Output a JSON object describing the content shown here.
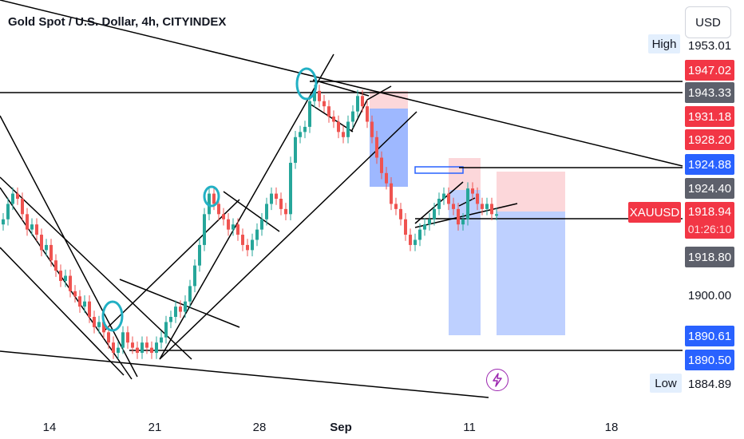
{
  "title": "Gold Spot / U.S. Dollar, 4h, CITYINDEX",
  "currency_button": "USD",
  "symbol": "XAUUSD",
  "countdown": "01:26:10",
  "high_label": "High",
  "low_label": "Low",
  "colors": {
    "up": "#26a69a",
    "down": "#ef5350",
    "label_red": "#f23645",
    "label_blue": "#2962ff",
    "label_gray": "#5d606b",
    "target_zone": "#2962ff",
    "stop_zone": "#f23645",
    "circle": "#22b0c4"
  },
  "icons": {
    "flash": "lightning-icon"
  },
  "price_labels": [
    {
      "value": "1953.01",
      "style": "plain",
      "y": 1953.01
    },
    {
      "value": "1947.02",
      "style": "red",
      "y": 1947.02
    },
    {
      "value": "1943.33",
      "style": "gray",
      "y": 1943.33
    },
    {
      "value": "1931.18",
      "style": "red",
      "y": 1931.18
    },
    {
      "value": "1928.20",
      "style": "red",
      "y": 1928.2
    },
    {
      "value": "1924.88",
      "style": "blue",
      "y": 1924.88
    },
    {
      "value": "1924.40",
      "style": "gray",
      "y": 1924.4
    },
    {
      "value": "1918.80",
      "style": "gray",
      "y": 1918.8
    },
    {
      "value": "1900.00",
      "style": "plain",
      "y": 1900.0
    },
    {
      "value": "1890.61",
      "style": "blue",
      "y": 1890.61
    },
    {
      "value": "1890.50",
      "style": "blue",
      "y": 1890.5
    },
    {
      "value": "1884.89",
      "style": "plain",
      "y": 1884.89
    }
  ],
  "current_price": "1918.94",
  "chart_data": {
    "type": "line",
    "title": "Gold Spot / U.S. Dollar, 4h, CITYINDEX",
    "x_tick_labels": [
      "14",
      "21",
      "28",
      "Sep",
      "11",
      "18"
    ],
    "y_range": [
      1880,
      1957
    ],
    "series": [
      {
        "x": [
          0,
          6,
          12,
          18,
          24,
          30,
          36,
          42,
          48,
          54,
          60,
          66,
          72,
          78,
          84,
          90,
          96,
          102,
          108,
          114,
          120,
          126,
          132,
          138,
          144,
          150,
          156,
          162,
          168,
          174,
          180,
          186,
          192,
          198,
          204,
          210,
          216,
          222,
          228,
          234,
          240,
          246,
          252,
          258,
          264,
          270,
          276,
          282,
          288,
          294,
          300,
          306,
          312,
          318,
          324,
          330,
          336,
          342,
          348,
          354,
          360,
          366,
          372,
          378,
          384,
          390,
          396,
          402,
          408,
          414,
          420,
          426,
          432,
          438,
          444,
          450,
          456,
          462,
          468,
          474,
          480,
          486,
          492,
          498,
          504,
          510,
          516,
          522,
          528,
          534,
          540,
          546,
          552,
          558,
          564,
          570,
          576,
          582,
          588,
          594,
          600,
          606,
          612,
          618
        ],
        "values": [
          1918,
          1921,
          1923,
          1922,
          1919,
          1916,
          1917,
          1915,
          1912,
          1913,
          1910,
          1908,
          1906,
          1907,
          1904,
          1903,
          1901,
          1902,
          1899,
          1897,
          1898,
          1896,
          1894,
          1892,
          1893,
          1896,
          1894,
          1893,
          1892,
          1894,
          1893,
          1892,
          1894,
          1895,
          1898,
          1899,
          1901,
          1900,
          1902,
          1905,
          1909,
          1913,
          1919,
          1923,
          1921,
          1919,
          1918,
          1916,
          1917,
          1915,
          1913,
          1912,
          1914,
          1916,
          1918,
          1921,
          1923,
          1922,
          1920,
          1919,
          1929,
          1934,
          1935,
          1936,
          1941,
          1943,
          1941,
          1940,
          1938,
          1937,
          1935,
          1934,
          1937,
          1939,
          1942,
          1940,
          1937,
          1934,
          1930,
          1927,
          1925,
          1921,
          1920,
          1918,
          1915,
          1913,
          1914,
          1916,
          1917,
          1918,
          1920,
          1922,
          1923,
          1921,
          1920,
          1917,
          1918,
          1924,
          1923,
          1921,
          1920,
          1921,
          1919,
          1919
        ]
      }
    ]
  }
}
